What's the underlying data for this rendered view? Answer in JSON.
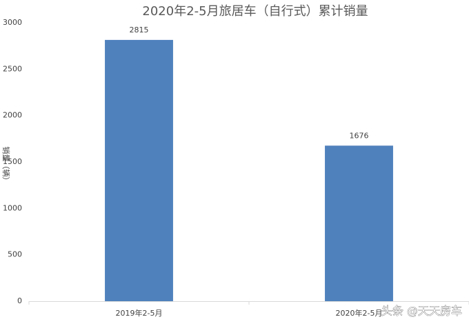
{
  "chart_data": {
    "type": "bar",
    "title": "2020年2-5月旅居车（自行式）累计销量",
    "y_label": "销量（辆）",
    "categories": [
      "2019年2-5月",
      "2020年2-5月"
    ],
    "values": [
      2815,
      1676
    ],
    "color": "#4f81bd",
    "ylim": [
      0,
      3000
    ],
    "yticks": [
      0,
      500,
      1000,
      1500,
      2000,
      2500,
      3000
    ],
    "grid": false,
    "watermark": "头条 @天天房车"
  }
}
